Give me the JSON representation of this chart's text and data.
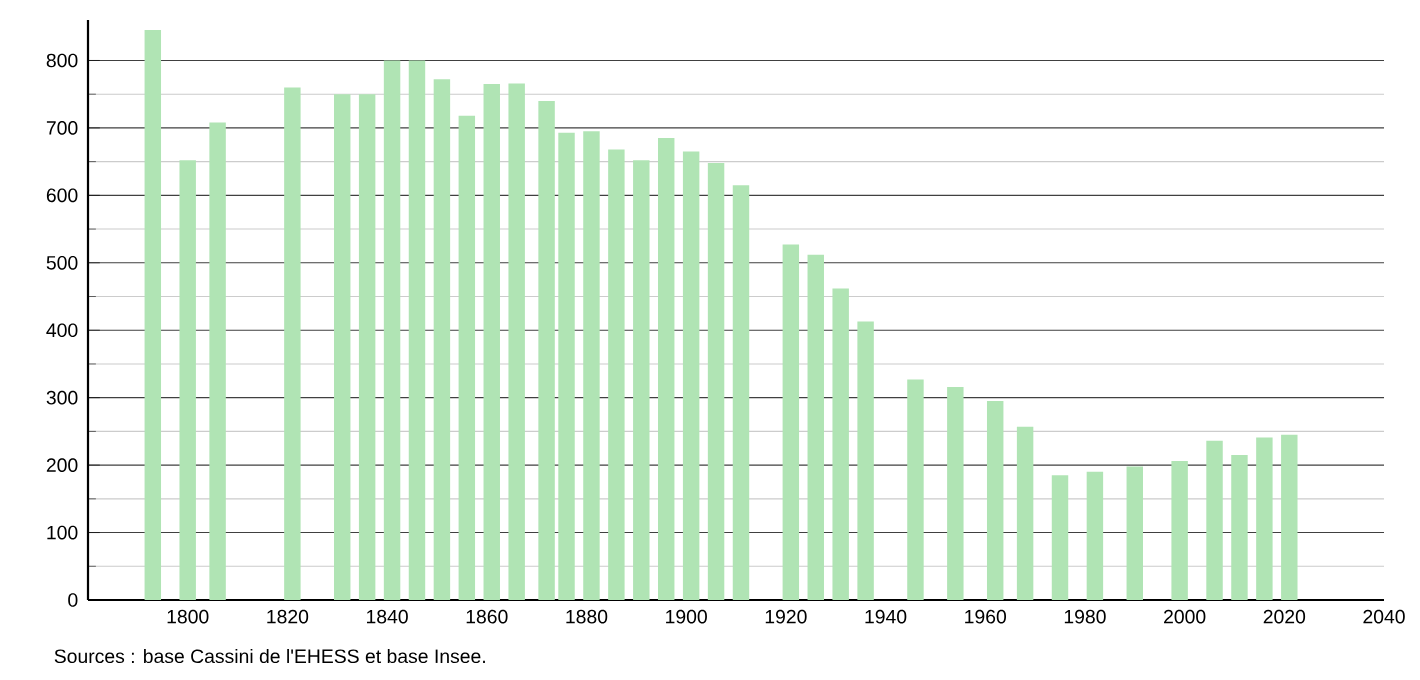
{
  "chart_data": {
    "type": "bar",
    "x": [
      1793,
      1800,
      1806,
      1821,
      1831,
      1836,
      1841,
      1846,
      1851,
      1856,
      1861,
      1866,
      1872,
      1876,
      1881,
      1886,
      1891,
      1896,
      1901,
      1906,
      1911,
      1921,
      1926,
      1931,
      1936,
      1946,
      1954,
      1962,
      1968,
      1975,
      1982,
      1990,
      1999,
      2006,
      2011,
      2016,
      2021
    ],
    "values": [
      845,
      652,
      708,
      760,
      750,
      750,
      800,
      800,
      772,
      718,
      765,
      766,
      740,
      693,
      695,
      668,
      652,
      685,
      665,
      648,
      615,
      527,
      512,
      462,
      413,
      327,
      316,
      295,
      257,
      185,
      190,
      198,
      206,
      236,
      215,
      241,
      245
    ],
    "color": "#b0e4b4",
    "xlim": [
      1780,
      2040
    ],
    "xticks": [
      1800,
      1820,
      1840,
      1860,
      1880,
      1900,
      1920,
      1940,
      1960,
      1980,
      2000,
      2020,
      2040
    ],
    "ylim": [
      0,
      860
    ],
    "yticks": [
      0,
      100,
      200,
      300,
      400,
      500,
      600,
      700,
      800
    ],
    "grid": "y",
    "annotations": [
      "Sources : base Cassini de l'EHESS et base Insee."
    ]
  }
}
